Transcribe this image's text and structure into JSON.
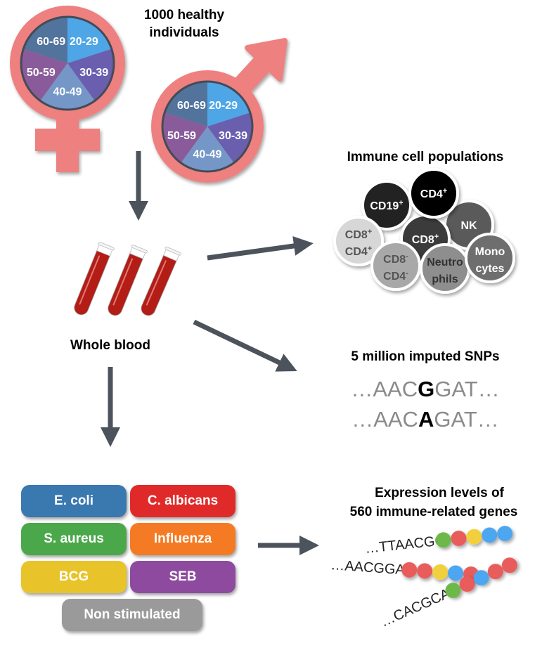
{
  "title": {
    "line1": "1000 healthy",
    "line2": "individuals"
  },
  "age_groups": [
    {
      "label": "20-29",
      "color": "#4ea6e6"
    },
    {
      "label": "30-39",
      "color": "#6a5eae"
    },
    {
      "label": "40-49",
      "color": "#7497c8"
    },
    {
      "label": "50-59",
      "color": "#8a5b9a"
    },
    {
      "label": "60-69",
      "color": "#52739c"
    }
  ],
  "symbol_color": "#ee8080",
  "arrow_color": "#4d535c",
  "whole_blood": "Whole blood",
  "immune": {
    "title": "Immune cell populations",
    "cells": [
      {
        "l1": "CD8",
        "s1": "+",
        "l2": "CD4",
        "s2": "+",
        "fill": "#d7d7d7",
        "text": "#555"
      },
      {
        "l1": "CD19",
        "s1": "+",
        "l2": "",
        "s2": "",
        "fill": "#222222",
        "text": "#fff"
      },
      {
        "l1": "NK",
        "s1": "",
        "l2": "",
        "s2": "",
        "fill": "#5a5a5a",
        "text": "#fff"
      },
      {
        "l1": "CD8",
        "s1": "+",
        "l2": "",
        "s2": "",
        "fill": "#3a3a3a",
        "text": "#fff"
      },
      {
        "l1": "CD4",
        "s1": "+",
        "l2": "",
        "s2": "",
        "fill": "#000000",
        "text": "#fff"
      },
      {
        "l1": "CD8",
        "s1": "-",
        "l2": "CD4",
        "s2": "-",
        "fill": "#a8a8a8",
        "text": "#555"
      },
      {
        "l1": "Neutro",
        "s1": "",
        "l2": "phils",
        "s2": "",
        "fill": "#8e8e8e",
        "text": "#333"
      },
      {
        "l1": "Mono",
        "s1": "",
        "l2": "cytes",
        "s2": "",
        "fill": "#6e6e6e",
        "text": "#fff"
      }
    ]
  },
  "snps": {
    "title": "5 million imputed SNPs",
    "seq1": {
      "pre": "…AAC",
      "allele": "G",
      "post": "GAT…"
    },
    "seq2": {
      "pre": "…AAC",
      "allele": "A",
      "post": "GAT…"
    }
  },
  "stimuli": [
    {
      "label": "E. coli",
      "color": "#3a78b0"
    },
    {
      "label": "C. albicans",
      "color": "#e02a2a"
    },
    {
      "label": "S. aureus",
      "color": "#4aa84a"
    },
    {
      "label": "Influenza",
      "color": "#f47b24"
    },
    {
      "label": "BCG",
      "color": "#e8c42a"
    },
    {
      "label": "SEB",
      "color": "#8e4a9e"
    },
    {
      "label": "Non stimulated",
      "color": "#9a9a9a"
    }
  ],
  "expression": {
    "title1": "Expression levels of",
    "title2": "560 immune-related genes",
    "strands": [
      {
        "seq": "…TTAACGG",
        "beads": [
          "#6cb94a",
          "#e85c5c",
          "#f2d03c",
          "#4ea6f0",
          "#4ea6f0"
        ]
      },
      {
        "seq": "…AACGGAT",
        "beads": [
          "#e85c5c",
          "#e85c5c",
          "#f2d03c",
          "#4ea6f0",
          "#e85c5c"
        ]
      },
      {
        "seq": "…CACGCAA",
        "beads": [
          "#6cb94a",
          "#e85c5c",
          "#4ea6f0",
          "#e85c5c",
          "#e85c5c"
        ]
      }
    ]
  }
}
